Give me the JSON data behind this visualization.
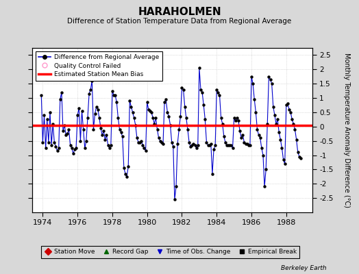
{
  "title": "HARAHOLMEN",
  "subtitle": "Difference of Station Temperature Data from Regional Average",
  "ylabel": "Monthly Temperature Anomaly Difference (°C)",
  "xlabel_years": [
    1974,
    1976,
    1978,
    1980,
    1982,
    1984,
    1986,
    1988
  ],
  "ylim": [
    -3.0,
    2.75
  ],
  "yticks": [
    -2.5,
    -2,
    -1.5,
    -1,
    -0.5,
    0,
    0.5,
    1,
    1.5,
    2,
    2.5
  ],
  "bias_value": 0.05,
  "line_color": "#0000CC",
  "bias_color": "#FF0000",
  "marker_color": "#000000",
  "bg_color": "#D8D8D8",
  "plot_bg": "#FFFFFF",
  "grid_color": "#C0C0C0",
  "berkeley_earth_text": "Berkeley Earth",
  "legend1_entries": [
    {
      "label": "Difference from Regional Average"
    },
    {
      "label": "Quality Control Failed"
    },
    {
      "label": "Estimated Station Mean Bias"
    }
  ],
  "legend2_entries": [
    {
      "label": "Station Move",
      "color": "#CC0000",
      "marker": "D"
    },
    {
      "label": "Record Gap",
      "color": "#006600",
      "marker": "^"
    },
    {
      "label": "Time of Obs. Change",
      "color": "#0000CC",
      "marker": "v"
    },
    {
      "label": "Empirical Break",
      "color": "#000000",
      "marker": "s"
    }
  ],
  "xlim": [
    1973.4,
    1989.5
  ],
  "data_x": [
    1973.917,
    1974.0,
    1974.083,
    1974.167,
    1974.25,
    1974.333,
    1974.417,
    1974.5,
    1974.583,
    1974.667,
    1974.75,
    1974.833,
    1974.917,
    1975.0,
    1975.083,
    1975.167,
    1975.25,
    1975.333,
    1975.417,
    1975.5,
    1975.583,
    1975.667,
    1975.75,
    1975.833,
    1975.917,
    1976.0,
    1976.083,
    1976.167,
    1976.25,
    1976.333,
    1976.417,
    1976.5,
    1976.583,
    1976.667,
    1976.75,
    1976.833,
    1976.917,
    1977.0,
    1977.083,
    1977.167,
    1977.25,
    1977.333,
    1977.417,
    1977.5,
    1977.583,
    1977.667,
    1977.75,
    1977.833,
    1977.917,
    1978.0,
    1978.083,
    1978.167,
    1978.25,
    1978.333,
    1978.417,
    1978.5,
    1978.583,
    1978.667,
    1978.75,
    1978.833,
    1978.917,
    1979.0,
    1979.083,
    1979.167,
    1979.25,
    1979.333,
    1979.417,
    1979.5,
    1979.583,
    1979.667,
    1979.75,
    1979.833,
    1979.917,
    1980.0,
    1980.083,
    1980.167,
    1980.25,
    1980.333,
    1980.417,
    1980.5,
    1980.583,
    1980.667,
    1980.75,
    1980.833,
    1980.917,
    1981.0,
    1981.083,
    1981.167,
    1981.25,
    1981.333,
    1981.417,
    1981.5,
    1981.583,
    1981.667,
    1981.75,
    1981.833,
    1981.917,
    1982.0,
    1982.083,
    1982.167,
    1982.25,
    1982.333,
    1982.417,
    1982.5,
    1982.583,
    1982.667,
    1982.75,
    1982.833,
    1982.917,
    1983.0,
    1983.083,
    1983.167,
    1983.25,
    1983.333,
    1983.417,
    1983.5,
    1983.583,
    1983.667,
    1983.75,
    1983.833,
    1983.917,
    1984.0,
    1984.083,
    1984.167,
    1984.25,
    1984.333,
    1984.417,
    1984.5,
    1984.583,
    1984.667,
    1984.75,
    1984.833,
    1984.917,
    1985.0,
    1985.083,
    1985.167,
    1985.25,
    1985.333,
    1985.417,
    1985.5,
    1985.583,
    1985.667,
    1985.75,
    1985.833,
    1985.917,
    1986.0,
    1986.083,
    1986.167,
    1986.25,
    1986.333,
    1986.417,
    1986.5,
    1986.583,
    1986.667,
    1986.75,
    1986.833,
    1986.917,
    1987.0,
    1987.083,
    1987.167,
    1987.25,
    1987.333,
    1987.417,
    1987.5,
    1987.583,
    1987.667,
    1987.75,
    1987.833,
    1987.917,
    1988.0,
    1988.083,
    1988.167,
    1988.25,
    1988.333,
    1988.417,
    1988.5,
    1988.583,
    1988.667,
    1988.75,
    1988.833
  ],
  "data_y": [
    1.1,
    -0.55,
    0.4,
    -0.75,
    0.25,
    -0.55,
    0.5,
    -0.65,
    0.1,
    -0.55,
    -0.7,
    -0.85,
    -0.75,
    0.95,
    1.2,
    -0.15,
    0.05,
    -0.3,
    -0.25,
    -0.1,
    -0.65,
    -0.75,
    -0.95,
    -0.8,
    -0.75,
    0.4,
    0.65,
    -0.5,
    0.55,
    -0.1,
    -0.75,
    -0.5,
    0.3,
    1.15,
    1.3,
    1.6,
    -0.1,
    0.45,
    0.7,
    0.6,
    0.3,
    -0.05,
    -0.3,
    -0.15,
    -0.45,
    -0.3,
    -0.65,
    -0.75,
    -0.65,
    1.25,
    1.1,
    1.1,
    0.85,
    0.3,
    -0.1,
    -0.2,
    -0.35,
    -1.45,
    -1.65,
    -1.75,
    -1.4,
    0.9,
    0.7,
    0.5,
    0.3,
    0.05,
    -0.4,
    -0.55,
    -0.55,
    -0.5,
    -0.65,
    -0.75,
    -0.85,
    0.85,
    0.6,
    0.55,
    0.5,
    0.3,
    0.1,
    0.3,
    -0.1,
    -0.4,
    -0.5,
    -0.55,
    -0.6,
    0.85,
    0.95,
    0.5,
    0.35,
    0.05,
    -0.55,
    -0.7,
    -2.55,
    -2.1,
    -0.6,
    -0.1,
    0.35,
    1.35,
    1.3,
    0.7,
    0.3,
    -0.1,
    -0.55,
    -0.7,
    -0.65,
    -0.6,
    -0.65,
    -0.75,
    -0.65,
    2.05,
    1.3,
    1.2,
    0.75,
    0.25,
    -0.55,
    -0.65,
    -0.65,
    -0.6,
    -1.65,
    -0.8,
    -0.65,
    1.3,
    1.2,
    1.1,
    0.3,
    0.1,
    -0.35,
    -0.55,
    -0.65,
    -0.65,
    -0.65,
    -0.65,
    -0.75,
    0.3,
    0.2,
    0.3,
    0.2,
    -0.15,
    -0.4,
    -0.3,
    -0.55,
    -0.6,
    -0.6,
    -0.65,
    -0.65,
    1.75,
    1.5,
    0.95,
    0.5,
    -0.1,
    -0.3,
    -0.4,
    -0.75,
    -1.0,
    -2.1,
    -1.5,
    0.1,
    1.75,
    1.65,
    1.5,
    0.7,
    0.4,
    0.1,
    0.25,
    -0.2,
    -0.45,
    -0.75,
    -1.15,
    -1.3,
    0.75,
    0.8,
    0.6,
    0.5,
    0.25,
    0.1,
    -0.1,
    -0.45,
    -0.9,
    -1.05,
    -1.1
  ]
}
